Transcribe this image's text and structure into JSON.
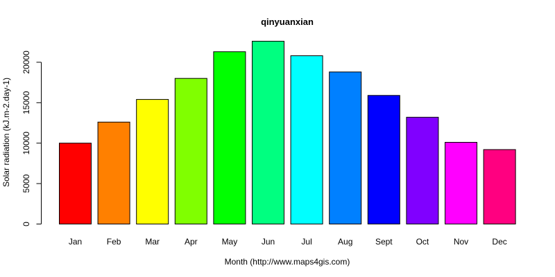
{
  "chart_data": {
    "type": "bar",
    "title": "qinyuanxian",
    "xlabel": "Month (http://www.maps4gis.com)",
    "ylabel": "Solar radiation (kJ.m-2.day-1)",
    "categories": [
      "Jan",
      "Feb",
      "Mar",
      "Apr",
      "May",
      "Jun",
      "Jul",
      "Aug",
      "Sept",
      "Oct",
      "Nov",
      "Dec"
    ],
    "values": [
      10000,
      12600,
      15400,
      18000,
      21300,
      22600,
      20800,
      18800,
      15900,
      13200,
      10100,
      9200
    ],
    "colors": [
      "#FF0000",
      "#FF8000",
      "#FFFF00",
      "#80FF00",
      "#00FF00",
      "#00FF80",
      "#00FFFF",
      "#0080FF",
      "#0000FF",
      "#8000FF",
      "#FF00FF",
      "#FF0080"
    ],
    "yticks": [
      0,
      5000,
      10000,
      15000,
      20000
    ],
    "ylim": [
      0,
      22600
    ],
    "grid": false,
    "legend": "none"
  }
}
